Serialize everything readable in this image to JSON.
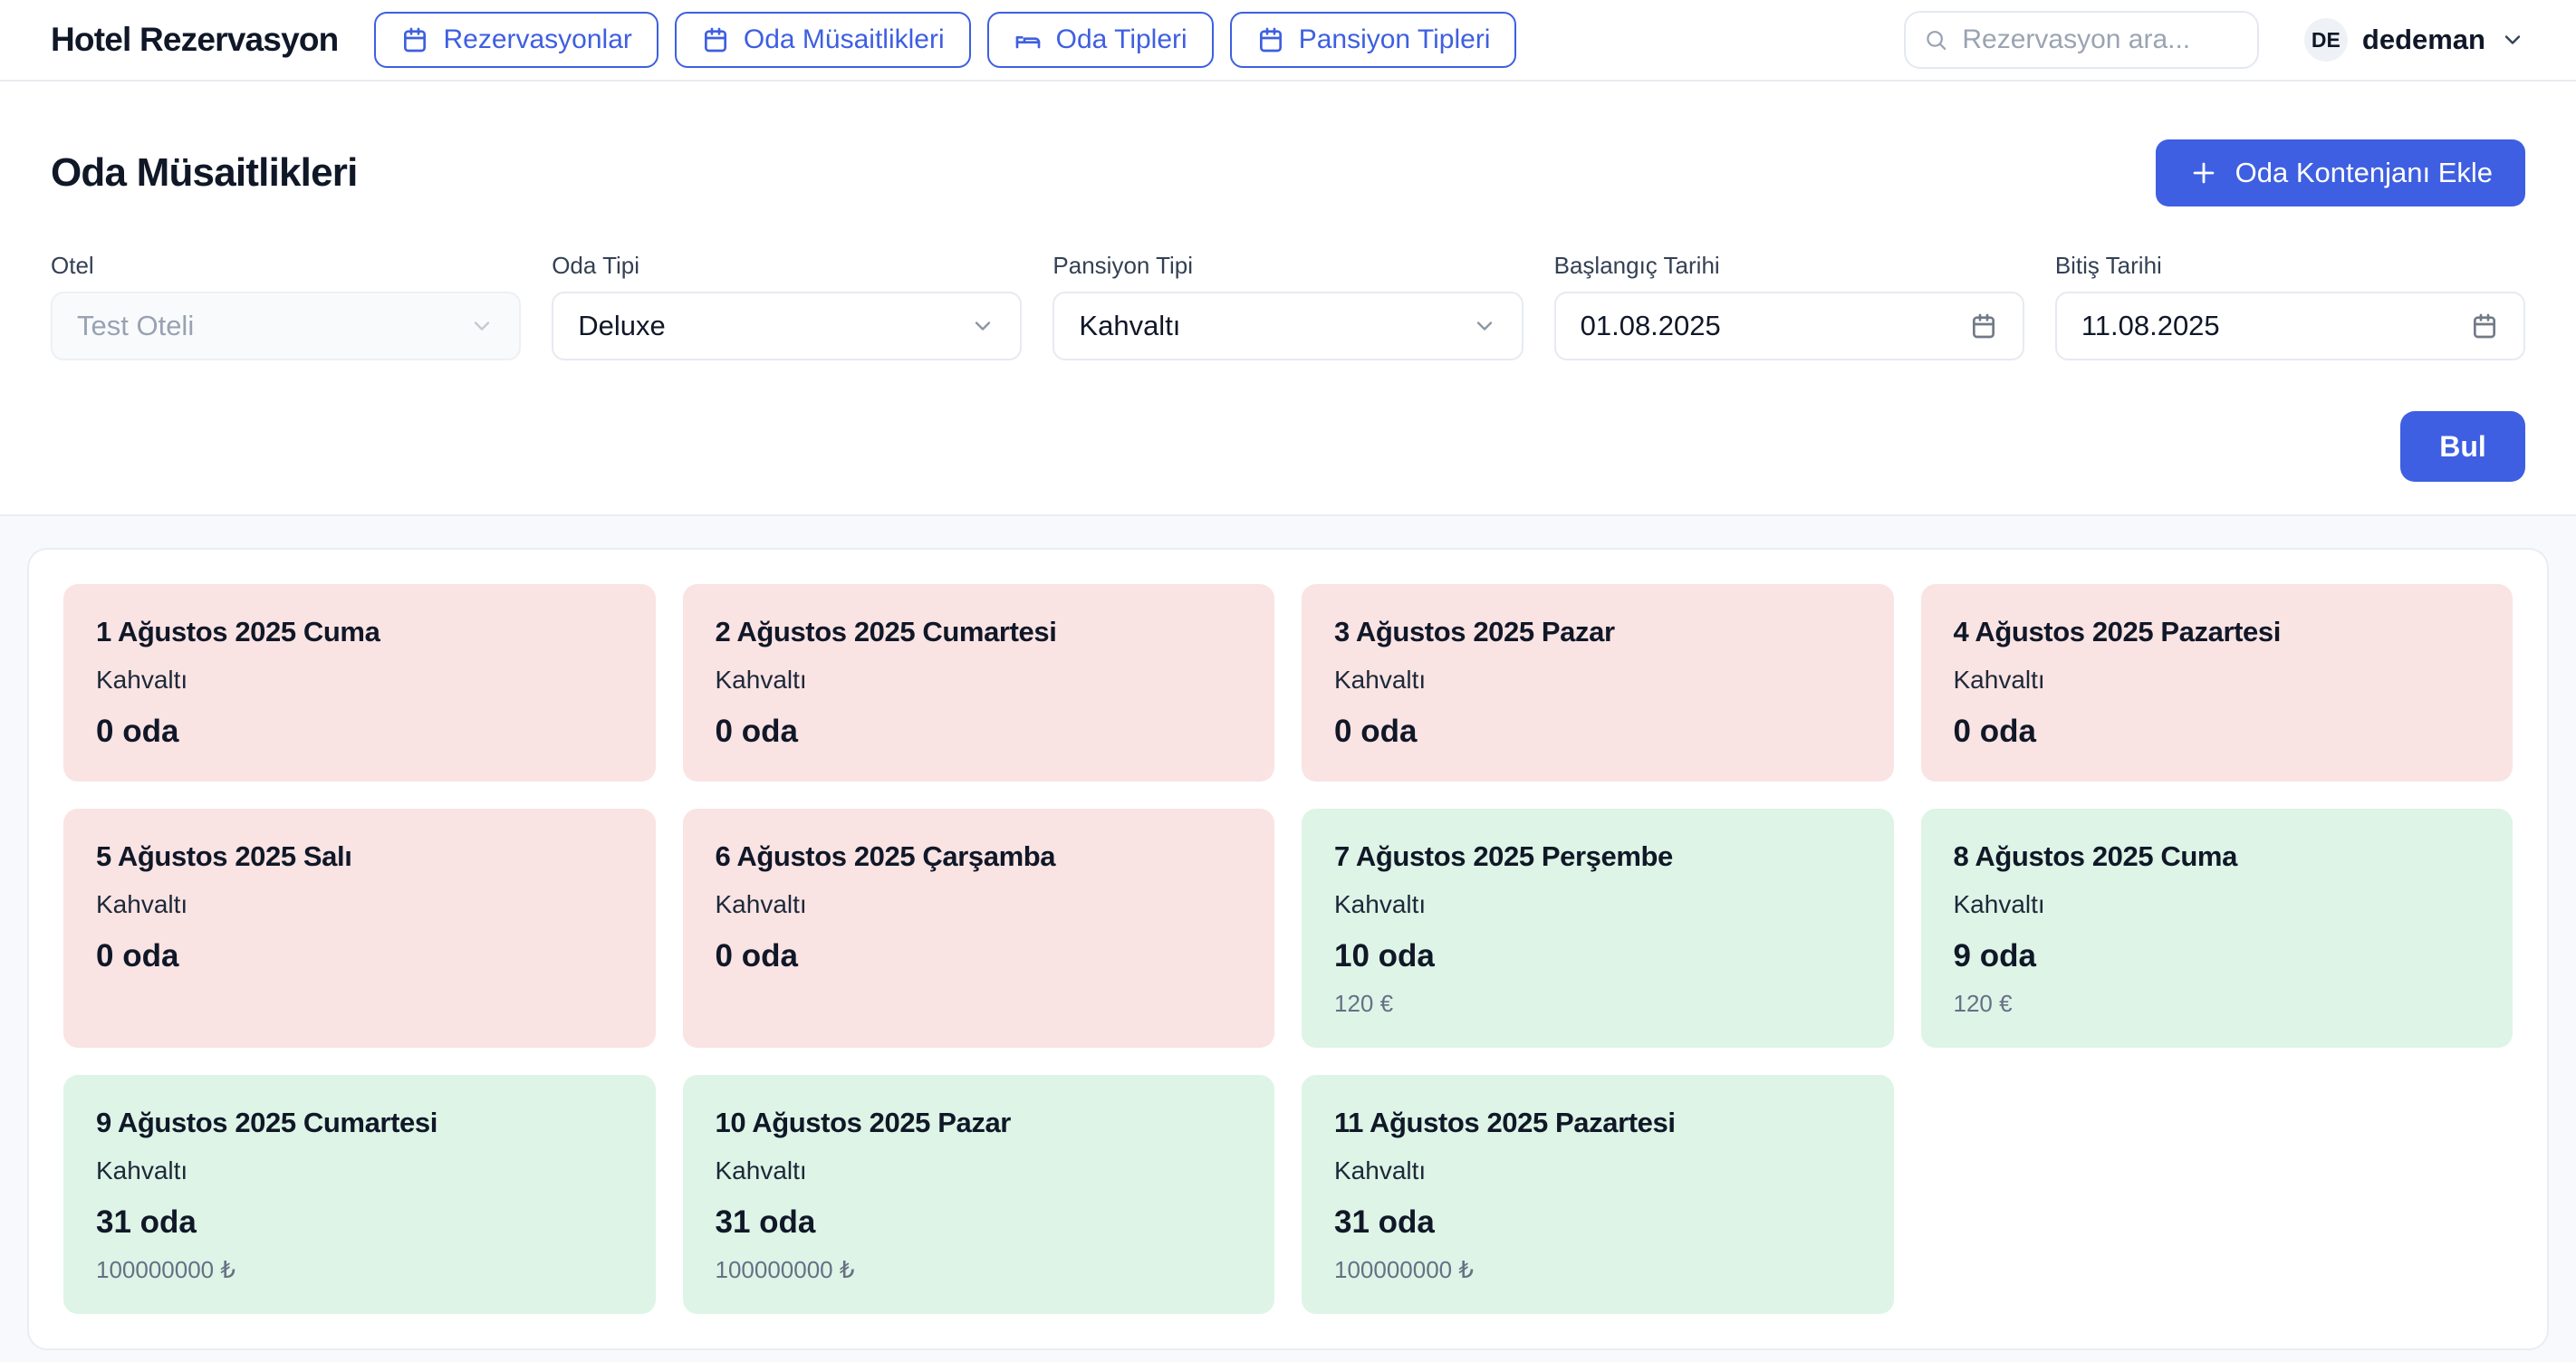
{
  "colors": {
    "accent": "#3e5fe1",
    "unavailable_bg": "#fae3e3",
    "available_bg": "#def4e6"
  },
  "brand": "Hotel Rezervasyon",
  "nav": {
    "items": [
      {
        "id": "rezervasyonlar",
        "label": "Rezervasyonlar",
        "icon": "calendar-icon"
      },
      {
        "id": "oda-musaitlikleri",
        "label": "Oda Müsaitlikleri",
        "icon": "calendar-icon"
      },
      {
        "id": "oda-tipleri",
        "label": "Oda Tipleri",
        "icon": "bed-icon"
      },
      {
        "id": "pansiyon-tipleri",
        "label": "Pansiyon Tipleri",
        "icon": "calendar-icon"
      }
    ]
  },
  "search": {
    "placeholder": "Rezervasyon ara...",
    "icon": "search-icon"
  },
  "user": {
    "initials": "DE",
    "name": "dedeman",
    "menu_icon": "chevron-down-icon"
  },
  "page": {
    "title": "Oda Müsaitlikleri",
    "add_button_label": "Oda Kontenjanı Ekle",
    "add_button_icon": "plus-icon",
    "find_button_label": "Bul"
  },
  "filters": [
    {
      "id": "otel",
      "label": "Otel",
      "value": "Test Oteli",
      "type": "select",
      "disabled": true
    },
    {
      "id": "oda-tipi",
      "label": "Oda Tipi",
      "value": "Deluxe",
      "type": "select",
      "disabled": false
    },
    {
      "id": "pansiyon-tipi",
      "label": "Pansiyon Tipi",
      "value": "Kahvaltı",
      "type": "select",
      "disabled": false
    },
    {
      "id": "baslangic-tarihi",
      "label": "Başlangıç Tarihi",
      "value": "01.08.2025",
      "type": "date",
      "disabled": false
    },
    {
      "id": "bitis-tarihi",
      "label": "Bitiş Tarihi",
      "value": "11.08.2025",
      "type": "date",
      "disabled": false
    }
  ],
  "cards": [
    {
      "date": "1 Ağustos 2025 Cuma",
      "meal": "Kahvaltı",
      "rooms": "0 oda",
      "price": "",
      "status": "unavailable"
    },
    {
      "date": "2 Ağustos 2025 Cumartesi",
      "meal": "Kahvaltı",
      "rooms": "0 oda",
      "price": "",
      "status": "unavailable"
    },
    {
      "date": "3 Ağustos 2025 Pazar",
      "meal": "Kahvaltı",
      "rooms": "0 oda",
      "price": "",
      "status": "unavailable"
    },
    {
      "date": "4 Ağustos 2025 Pazartesi",
      "meal": "Kahvaltı",
      "rooms": "0 oda",
      "price": "",
      "status": "unavailable"
    },
    {
      "date": "5 Ağustos 2025 Salı",
      "meal": "Kahvaltı",
      "rooms": "0 oda",
      "price": "",
      "status": "unavailable"
    },
    {
      "date": "6 Ağustos 2025 Çarşamba",
      "meal": "Kahvaltı",
      "rooms": "0 oda",
      "price": "",
      "status": "unavailable"
    },
    {
      "date": "7 Ağustos 2025 Perşembe",
      "meal": "Kahvaltı",
      "rooms": "10 oda",
      "price": "120 €",
      "status": "available"
    },
    {
      "date": "8 Ağustos 2025 Cuma",
      "meal": "Kahvaltı",
      "rooms": "9 oda",
      "price": "120 €",
      "status": "available"
    },
    {
      "date": "9 Ağustos 2025 Cumartesi",
      "meal": "Kahvaltı",
      "rooms": "31 oda",
      "price": "100000000 ₺",
      "status": "available"
    },
    {
      "date": "10 Ağustos 2025 Pazar",
      "meal": "Kahvaltı",
      "rooms": "31 oda",
      "price": "100000000 ₺",
      "status": "available"
    },
    {
      "date": "11 Ağustos 2025 Pazartesi",
      "meal": "Kahvaltı",
      "rooms": "31 oda",
      "price": "100000000 ₺",
      "status": "available"
    }
  ]
}
